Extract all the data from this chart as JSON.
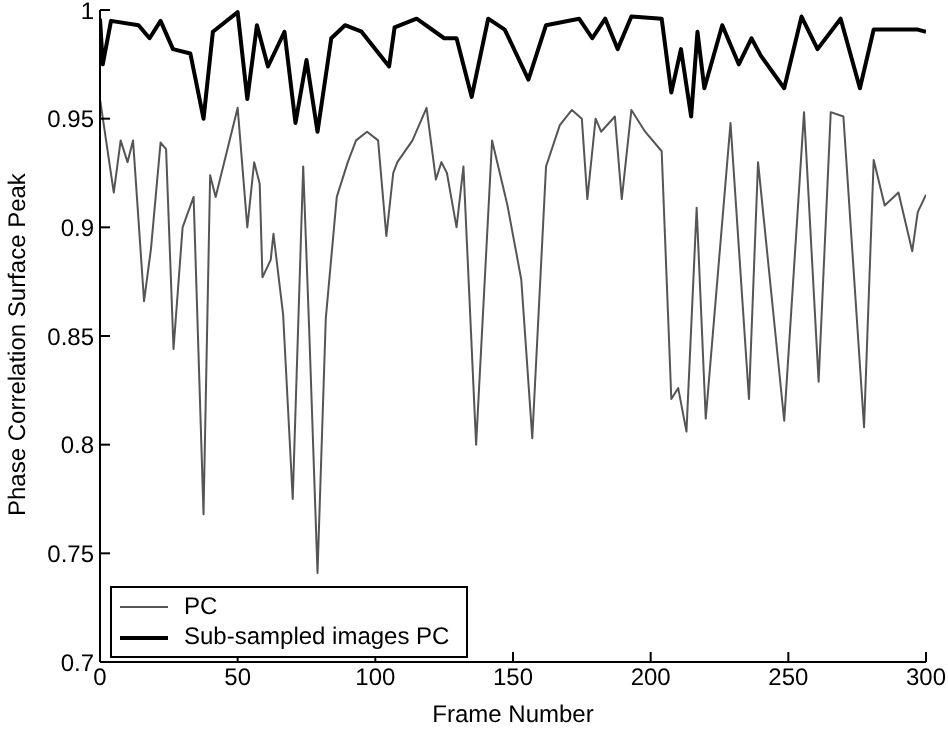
{
  "chart_data": {
    "type": "line",
    "xlabel": "Frame Number",
    "ylabel": "Phase Correlation Surface Peak",
    "xlim": [
      0,
      300
    ],
    "xticks": [
      0,
      50,
      100,
      150,
      200,
      250,
      300
    ],
    "ylim": [
      0.7,
      1
    ],
    "yticks": [
      0.7,
      0.75,
      0.8,
      0.85,
      0.9,
      0.95,
      1
    ],
    "grid": false,
    "legend": "bottom left",
    "marker": "none",
    "line_style": "solid",
    "series": [
      {
        "name": "PC",
        "color": "#555555",
        "x": [
          0,
          5,
          7.5,
          10,
          12,
          16,
          18.5,
          22,
          24,
          26.7,
          30,
          34,
          37.6,
          40,
          42,
          50,
          53.5,
          56,
          58,
          59,
          62,
          63,
          66.5,
          70,
          73.8,
          76,
          79,
          82,
          86,
          90,
          93,
          97,
          101,
          104,
          106.5,
          108,
          113.5,
          118.6,
          122,
          124,
          126,
          129.5,
          132,
          136.6,
          142.4,
          148,
          153,
          157,
          162,
          167,
          171.4,
          175,
          177,
          180,
          182,
          187,
          189.5,
          193,
          198,
          204,
          207.5,
          210,
          213,
          216.7,
          220,
          229,
          235.7,
          239,
          248.5,
          255.7,
          261,
          265.4,
          270,
          277.5,
          281,
          285,
          290,
          295,
          297,
          300
        ],
        "values": [
          0.959,
          0.916,
          0.94,
          0.93,
          0.94,
          0.866,
          0.89,
          0.939,
          0.936,
          0.844,
          0.9,
          0.914,
          0.768,
          0.924,
          0.914,
          0.955,
          0.9,
          0.93,
          0.92,
          0.877,
          0.885,
          0.897,
          0.86,
          0.775,
          0.928,
          0.852,
          0.741,
          0.858,
          0.914,
          0.93,
          0.94,
          0.944,
          0.94,
          0.896,
          0.925,
          0.93,
          0.94,
          0.955,
          0.922,
          0.93,
          0.925,
          0.9,
          0.928,
          0.8,
          0.94,
          0.91,
          0.876,
          0.803,
          0.928,
          0.947,
          0.954,
          0.95,
          0.913,
          0.95,
          0.944,
          0.951,
          0.913,
          0.954,
          0.944,
          0.935,
          0.821,
          0.826,
          0.806,
          0.909,
          0.812,
          0.948,
          0.821,
          0.93,
          0.811,
          0.953,
          0.829,
          0.953,
          0.951,
          0.808,
          0.931,
          0.91,
          0.916,
          0.889,
          0.907,
          0.915
        ]
      },
      {
        "name": "Sub-sampled images PC",
        "color": "#000000",
        "x": [
          0,
          1,
          4,
          14,
          18,
          22,
          26.5,
          32.8,
          37.6,
          41,
          50,
          53.5,
          57,
          61,
          67,
          71,
          75,
          79,
          84,
          89,
          95,
          105,
          107,
          115,
          125,
          129.5,
          135,
          141,
          147,
          155.6,
          162,
          174,
          178.8,
          183.5,
          188,
          193,
          204,
          207.5,
          211,
          214.7,
          217,
          219.5,
          226,
          232,
          236.6,
          240,
          248.5,
          254.8,
          260.6,
          269,
          276,
          281,
          290,
          297,
          300
        ],
        "values": [
          0.996,
          0.975,
          0.995,
          0.993,
          0.987,
          0.995,
          0.982,
          0.98,
          0.95,
          0.99,
          0.999,
          0.959,
          0.993,
          0.974,
          0.99,
          0.948,
          0.977,
          0.944,
          0.987,
          0.993,
          0.99,
          0.974,
          0.992,
          0.996,
          0.987,
          0.987,
          0.96,
          0.996,
          0.991,
          0.968,
          0.993,
          0.996,
          0.987,
          0.996,
          0.982,
          0.997,
          0.996,
          0.962,
          0.982,
          0.951,
          0.99,
          0.964,
          0.993,
          0.975,
          0.987,
          0.979,
          0.964,
          0.997,
          0.982,
          0.996,
          0.964,
          0.991,
          0.991,
          0.991,
          0.99
        ]
      }
    ]
  }
}
